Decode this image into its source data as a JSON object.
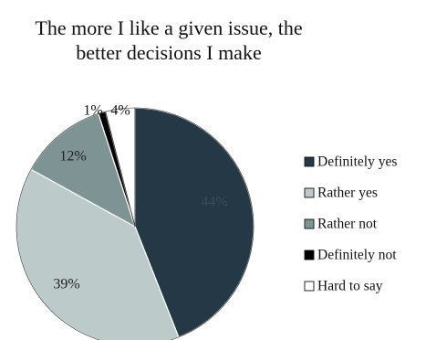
{
  "chart_data": {
    "type": "pie",
    "title_lines": [
      "The more I like a given issue, the",
      "better decisions I make"
    ],
    "categories": [
      "Definitely yes",
      "Rather yes",
      "Rather not",
      "Definitely not",
      "Hard to say"
    ],
    "values": [
      44,
      39,
      12,
      1,
      4
    ],
    "value_labels": [
      "44%",
      "39%",
      "12%",
      "1%",
      "4%"
    ],
    "colors": [
      "#243845",
      "#BDCACA",
      "#7E9393",
      "#000000",
      "#FFFFFF"
    ],
    "label_colors": [
      "#3a4d58",
      "#222222",
      "#222222",
      "#111111",
      "#111111"
    ],
    "legend_position": "right"
  }
}
